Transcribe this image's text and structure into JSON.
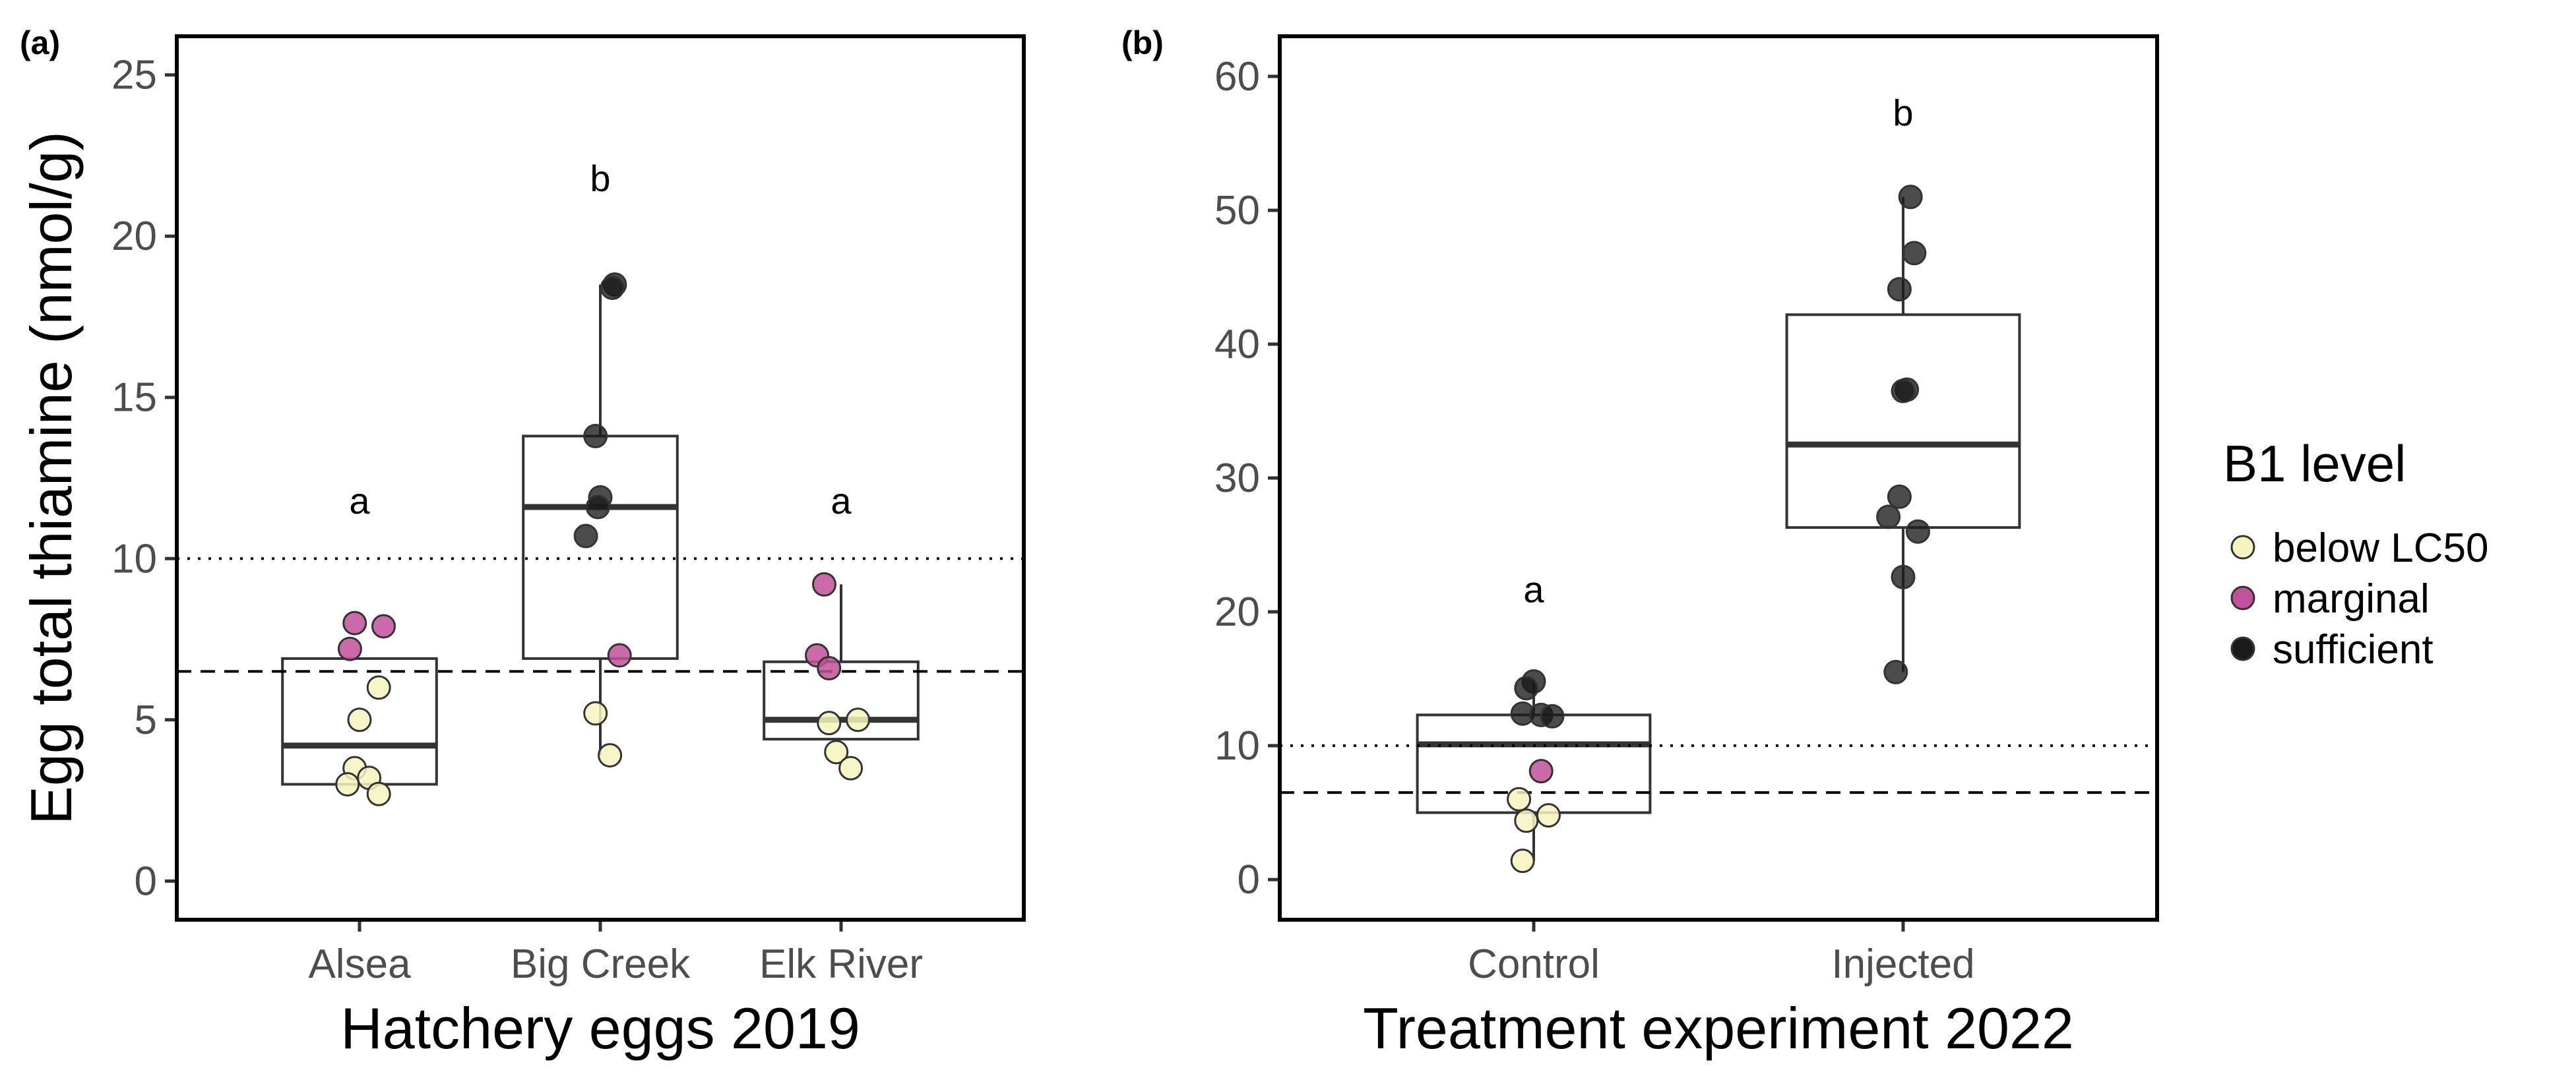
{
  "chart_data": [
    {
      "panel": "(a)",
      "type": "box",
      "xlabel": "Hatchery eggs 2019",
      "ylabel": "Egg total thiamine (nmol/g)",
      "ylim": [
        -1.2,
        26.2
      ],
      "yticks": [
        0,
        5,
        10,
        15,
        20,
        25
      ],
      "reference_lines": [
        {
          "style": "dotted",
          "value": 10
        },
        {
          "style": "dashed",
          "value": 6.5
        }
      ],
      "categories": [
        "Alsea",
        "Big Creek",
        "Elk River"
      ],
      "boxes": [
        {
          "category": "Alsea",
          "q1": 3.0,
          "median": 4.2,
          "q3": 6.9,
          "whisker_low": 3.0,
          "whisker_high": 6.9,
          "letter": "a",
          "letter_y": 11.8
        },
        {
          "category": "Big Creek",
          "q1": 6.9,
          "median": 11.6,
          "q3": 13.8,
          "whisker_low": 3.9,
          "whisker_high": 18.5,
          "letter": "b",
          "letter_y": 21.8
        },
        {
          "category": "Elk River",
          "q1": 4.4,
          "median": 5.0,
          "q3": 6.8,
          "whisker_low": 4.4,
          "whisker_high": 9.2,
          "letter": "a",
          "letter_y": 11.8
        }
      ],
      "points": [
        {
          "category": "Alsea",
          "y": 8.0,
          "level": "marginal",
          "jitter": -0.02
        },
        {
          "category": "Alsea",
          "y": 7.9,
          "level": "marginal",
          "jitter": 0.1
        },
        {
          "category": "Alsea",
          "y": 7.2,
          "level": "marginal",
          "jitter": -0.04
        },
        {
          "category": "Alsea",
          "y": 6.0,
          "level": "below LC50",
          "jitter": 0.08
        },
        {
          "category": "Alsea",
          "y": 5.0,
          "level": "below LC50",
          "jitter": 0.0
        },
        {
          "category": "Alsea",
          "y": 3.5,
          "level": "below LC50",
          "jitter": -0.02
        },
        {
          "category": "Alsea",
          "y": 3.2,
          "level": "below LC50",
          "jitter": 0.04
        },
        {
          "category": "Alsea",
          "y": 3.0,
          "level": "below LC50",
          "jitter": -0.05
        },
        {
          "category": "Alsea",
          "y": 2.7,
          "level": "below LC50",
          "jitter": 0.08
        },
        {
          "category": "Big Creek",
          "y": 18.5,
          "level": "sufficient",
          "jitter": 0.06
        },
        {
          "category": "Big Creek",
          "y": 18.4,
          "level": "sufficient",
          "jitter": 0.05
        },
        {
          "category": "Big Creek",
          "y": 13.8,
          "level": "sufficient",
          "jitter": -0.02
        },
        {
          "category": "Big Creek",
          "y": 11.9,
          "level": "sufficient",
          "jitter": 0.0
        },
        {
          "category": "Big Creek",
          "y": 11.6,
          "level": "sufficient",
          "jitter": -0.01
        },
        {
          "category": "Big Creek",
          "y": 10.7,
          "level": "sufficient",
          "jitter": -0.06
        },
        {
          "category": "Big Creek",
          "y": 7.0,
          "level": "marginal",
          "jitter": 0.08
        },
        {
          "category": "Big Creek",
          "y": 5.2,
          "level": "below LC50",
          "jitter": -0.02
        },
        {
          "category": "Big Creek",
          "y": 3.9,
          "level": "below LC50",
          "jitter": 0.04
        },
        {
          "category": "Elk River",
          "y": 9.2,
          "level": "marginal",
          "jitter": -0.07
        },
        {
          "category": "Elk River",
          "y": 7.0,
          "level": "marginal",
          "jitter": -0.1
        },
        {
          "category": "Elk River",
          "y": 6.6,
          "level": "marginal",
          "jitter": -0.05
        },
        {
          "category": "Elk River",
          "y": 5.0,
          "level": "below LC50",
          "jitter": 0.07
        },
        {
          "category": "Elk River",
          "y": 4.9,
          "level": "below LC50",
          "jitter": -0.05
        },
        {
          "category": "Elk River",
          "y": 4.0,
          "level": "below LC50",
          "jitter": -0.02
        },
        {
          "category": "Elk River",
          "y": 3.5,
          "level": "below LC50",
          "jitter": 0.04
        }
      ]
    },
    {
      "panel": "(b)",
      "type": "box",
      "xlabel": "Treatment experiment 2022",
      "ylabel": "",
      "ylim": [
        -3,
        63
      ],
      "yticks": [
        0,
        10,
        20,
        30,
        40,
        50,
        60
      ],
      "reference_lines": [
        {
          "style": "dotted",
          "value": 10
        },
        {
          "style": "dashed",
          "value": 6.5
        }
      ],
      "categories": [
        "Control",
        "Injected"
      ],
      "boxes": [
        {
          "category": "Control",
          "q1": 5.0,
          "median": 10.1,
          "q3": 12.3,
          "whisker_low": 1.4,
          "whisker_high": 14.8,
          "letter": "a",
          "letter_y": 21.7
        },
        {
          "category": "Injected",
          "q1": 26.3,
          "median": 32.5,
          "q3": 42.2,
          "whisker_low": 15.5,
          "whisker_high": 51.0,
          "letter": "b",
          "letter_y": 57.3
        }
      ],
      "points": [
        {
          "category": "Control",
          "y": 14.8,
          "level": "sufficient",
          "jitter": 0.0
        },
        {
          "category": "Control",
          "y": 14.3,
          "level": "sufficient",
          "jitter": -0.02
        },
        {
          "category": "Control",
          "y": 12.4,
          "level": "sufficient",
          "jitter": -0.03
        },
        {
          "category": "Control",
          "y": 12.3,
          "level": "sufficient",
          "jitter": 0.02
        },
        {
          "category": "Control",
          "y": 12.2,
          "level": "sufficient",
          "jitter": 0.05
        },
        {
          "category": "Control",
          "y": 8.1,
          "level": "marginal",
          "jitter": 0.02
        },
        {
          "category": "Control",
          "y": 6.0,
          "level": "below LC50",
          "jitter": -0.04
        },
        {
          "category": "Control",
          "y": 4.8,
          "level": "below LC50",
          "jitter": 0.04
        },
        {
          "category": "Control",
          "y": 4.4,
          "level": "below LC50",
          "jitter": -0.02
        },
        {
          "category": "Control",
          "y": 1.4,
          "level": "below LC50",
          "jitter": -0.03
        },
        {
          "category": "Injected",
          "y": 51.0,
          "level": "sufficient",
          "jitter": 0.02
        },
        {
          "category": "Injected",
          "y": 46.8,
          "level": "sufficient",
          "jitter": 0.03
        },
        {
          "category": "Injected",
          "y": 44.1,
          "level": "sufficient",
          "jitter": -0.01
        },
        {
          "category": "Injected",
          "y": 36.6,
          "level": "sufficient",
          "jitter": 0.01
        },
        {
          "category": "Injected",
          "y": 36.5,
          "level": "sufficient",
          "jitter": 0.0
        },
        {
          "category": "Injected",
          "y": 28.6,
          "level": "sufficient",
          "jitter": -0.01
        },
        {
          "category": "Injected",
          "y": 27.1,
          "level": "sufficient",
          "jitter": -0.04
        },
        {
          "category": "Injected",
          "y": 26.0,
          "level": "sufficient",
          "jitter": 0.04
        },
        {
          "category": "Injected",
          "y": 22.6,
          "level": "sufficient",
          "jitter": 0.0
        },
        {
          "category": "Injected",
          "y": 15.5,
          "level": "sufficient",
          "jitter": -0.02
        }
      ]
    }
  ],
  "legend": {
    "title": "B1 level",
    "items": [
      {
        "label": "below LC50",
        "color": "#f7f3c0"
      },
      {
        "label": "marginal",
        "color": "#c2509a"
      },
      {
        "label": "sufficient",
        "color": "#1a1a1a"
      }
    ]
  },
  "colors": {
    "below LC50": "#f7f3c0",
    "marginal": "#c2509a",
    "sufficient": "#1a1a1a",
    "axis": "#000000",
    "box": "#333333"
  }
}
